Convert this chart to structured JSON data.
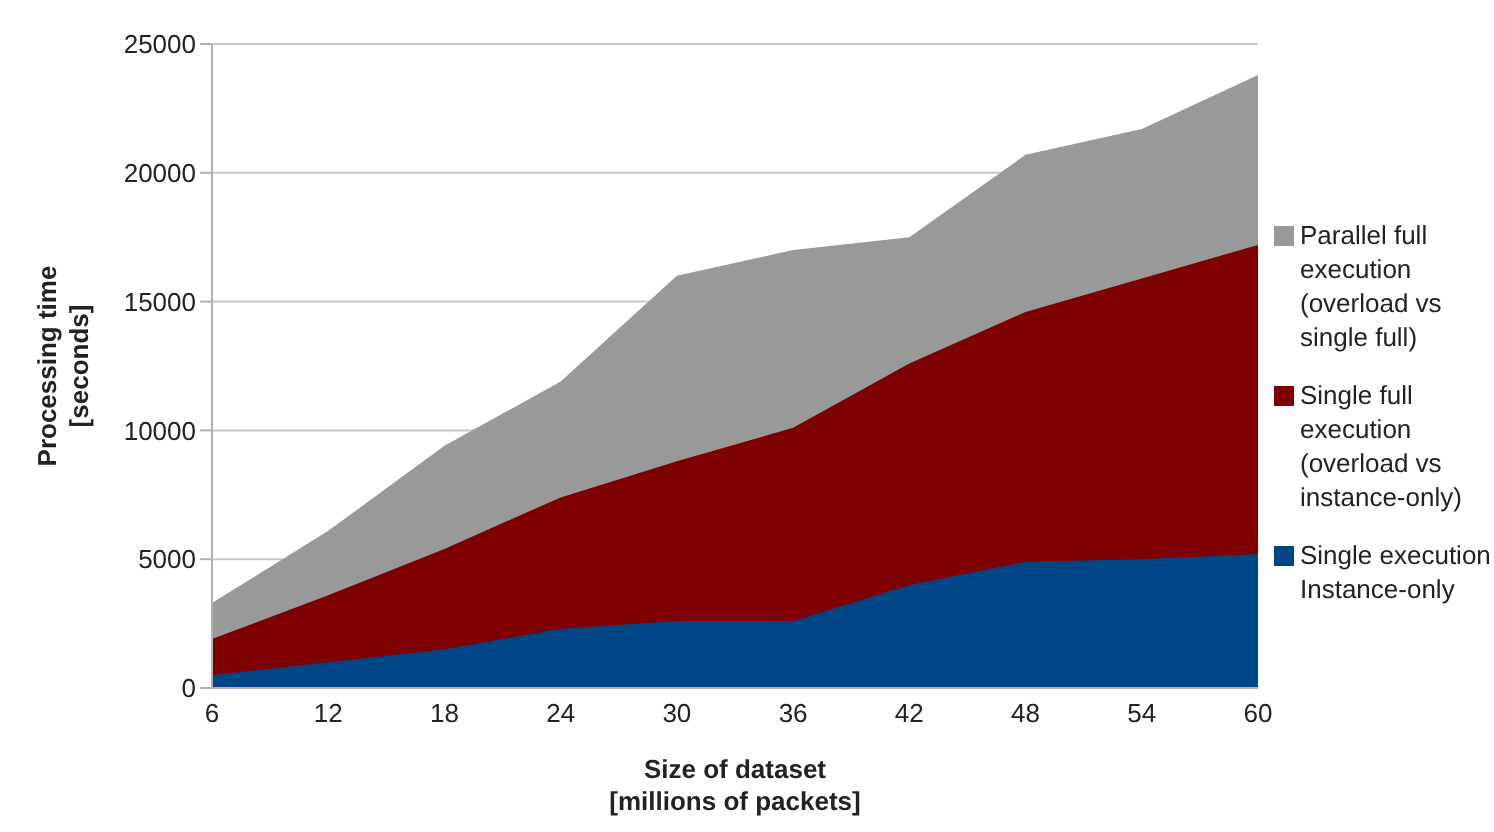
{
  "chart_data": {
    "type": "area",
    "xlabel": "Size of dataset\n[millions of packets]",
    "ylabel": "Processing time\n[seconds]",
    "categories": [
      "6",
      "12",
      "18",
      "24",
      "30",
      "36",
      "42",
      "48",
      "54",
      "60"
    ],
    "series": [
      {
        "name": "Parallel full execution (overload vs single full)",
        "color": "#999999",
        "values": [
          3300,
          6100,
          9400,
          11900,
          16000,
          17000,
          17500,
          20700,
          21700,
          23800
        ]
      },
      {
        "name": "Single full execution (overload vs instance-only)",
        "color": "#7f0000",
        "values": [
          1900,
          3600,
          5400,
          7400,
          8800,
          10100,
          12600,
          14600,
          15900,
          17200
        ]
      },
      {
        "name": "Single execution Instance-only",
        "color": "#004586",
        "values": [
          500,
          1000,
          1500,
          2300,
          2600,
          2600,
          4000,
          4900,
          5000,
          5200
        ]
      }
    ],
    "ylim": [
      0,
      25000
    ],
    "yticks": [
      0,
      5000,
      10000,
      15000,
      20000,
      25000
    ],
    "grid": "y",
    "legend": "right"
  }
}
